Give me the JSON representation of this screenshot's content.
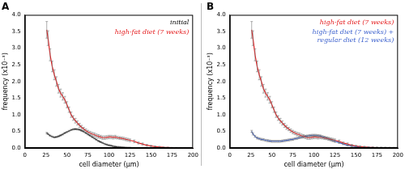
{
  "chart_data": [
    {
      "type": "line",
      "title": "A",
      "xlabel": "cell diameter (μm)",
      "ylabel": "frequency (x10⁻³)",
      "x": [
        26,
        27.5,
        30,
        32.5,
        35,
        37.5,
        40,
        42.5,
        45,
        47.5,
        50,
        52.5,
        55,
        57.5,
        60,
        62.5,
        65,
        67.5,
        70,
        72.5,
        75,
        77.5,
        80,
        82.5,
        85,
        87.5,
        90,
        92.5,
        95,
        97.5,
        100,
        102.5,
        105,
        107.5,
        110,
        112.5,
        115,
        117.5,
        120,
        122.5,
        125,
        130,
        135,
        140,
        145,
        150,
        155,
        160,
        165,
        170,
        175,
        180,
        185,
        190,
        195,
        200
      ],
      "xlim": [
        0,
        200
      ],
      "xticks": [
        0,
        25,
        50,
        75,
        100,
        125,
        150,
        175,
        200
      ],
      "ylim": [
        0,
        4
      ],
      "yticks": [
        {
          "value": 0,
          "label": "0.0"
        },
        {
          "value": 0.5,
          "label": "0.5"
        },
        {
          "value": 1,
          "label": "1.0"
        },
        {
          "value": 1.5,
          "label": "1.5"
        },
        {
          "value": 2,
          "label": "2.0"
        },
        {
          "value": 2.5,
          "label": "2.5"
        },
        {
          "value": 3,
          "label": "3.0"
        },
        {
          "value": 3.5,
          "label": "3.5"
        },
        {
          "value": 4,
          "label": "4.0"
        }
      ],
      "grid": false,
      "legend": "upper right",
      "series": [
        {
          "name": "initial",
          "color": "#000000",
          "values": [
            0.45,
            0.42,
            0.37,
            0.34,
            0.32,
            0.33,
            0.35,
            0.38,
            0.41,
            0.45,
            0.48,
            0.51,
            0.54,
            0.56,
            0.57,
            0.56,
            0.55,
            0.52,
            0.49,
            0.45,
            0.41,
            0.37,
            0.33,
            0.29,
            0.25,
            0.21,
            0.18,
            0.15,
            0.12,
            0.1,
            0.08,
            0.07,
            0.05,
            0.04,
            0.03,
            0.025,
            0.02,
            0.015,
            0.01,
            0.008,
            0.006,
            0.004,
            0.003,
            0.002,
            0.001,
            0.001,
            null,
            null,
            null,
            null,
            null,
            null,
            null,
            null,
            null,
            null
          ],
          "errors": [
            0.02,
            0.02,
            0.02,
            0.02,
            0.02,
            0.02,
            0.02,
            0.02,
            0.02,
            0.02,
            0.02,
            0.02,
            0.02,
            0.02,
            0.02,
            0.02,
            0.02,
            0.02,
            0.02,
            0.02,
            0.02,
            0.02,
            0.02,
            0.02,
            0.02,
            0.02,
            0.02,
            0.02,
            0.02,
            0.02,
            0.02,
            0.02,
            0.02,
            0.02,
            0.02,
            0.02,
            0.02,
            0.02,
            0.02,
            0.02,
            0.02,
            0.01,
            0.01,
            0.01,
            0.01,
            0.01,
            null,
            null,
            null,
            null,
            null,
            null,
            null,
            null,
            null,
            null
          ]
        },
        {
          "name": "high-fat diet (7 weeks)",
          "color": "#e41a1c",
          "values": [
            3.55,
            3.3,
            2.8,
            2.45,
            2.2,
            2.0,
            1.78,
            1.65,
            1.55,
            1.45,
            1.3,
            1.15,
            1.0,
            0.9,
            0.82,
            0.75,
            0.68,
            0.62,
            0.57,
            0.52,
            0.48,
            0.45,
            0.42,
            0.4,
            0.37,
            0.35,
            0.33,
            0.31,
            0.31,
            0.32,
            0.33,
            0.33,
            0.32,
            0.33,
            0.31,
            0.3,
            0.29,
            0.28,
            0.26,
            0.25,
            0.23,
            0.2,
            0.15,
            0.12,
            0.08,
            0.06,
            0.04,
            0.03,
            0.02,
            0.015,
            0.01,
            0.008,
            0.006,
            0.004,
            0.003,
            0.002
          ],
          "errors": [
            0.25,
            0.22,
            0.18,
            0.16,
            0.15,
            0.14,
            0.13,
            0.12,
            0.11,
            0.1,
            0.09,
            0.08,
            0.08,
            0.07,
            0.07,
            0.06,
            0.06,
            0.06,
            0.05,
            0.05,
            0.05,
            0.05,
            0.05,
            0.05,
            0.05,
            0.05,
            0.05,
            0.05,
            0.05,
            0.05,
            0.05,
            0.05,
            0.05,
            0.05,
            0.04,
            0.04,
            0.04,
            0.04,
            0.04,
            0.04,
            0.04,
            0.04,
            0.03,
            0.03,
            0.03,
            0.02,
            0.02,
            0.02,
            0.01,
            0.01,
            0.01,
            0.01,
            0.01,
            0.01,
            0.01,
            0.01
          ]
        }
      ]
    },
    {
      "type": "line",
      "title": "B",
      "xlabel": "cell diameter (μm)",
      "ylabel": "frequency (x10⁻³)",
      "x": [
        26,
        27.5,
        30,
        32.5,
        35,
        37.5,
        40,
        42.5,
        45,
        47.5,
        50,
        52.5,
        55,
        57.5,
        60,
        62.5,
        65,
        67.5,
        70,
        72.5,
        75,
        77.5,
        80,
        82.5,
        85,
        87.5,
        90,
        92.5,
        95,
        97.5,
        100,
        102.5,
        105,
        107.5,
        110,
        112.5,
        115,
        117.5,
        120,
        122.5,
        125,
        130,
        135,
        140,
        145,
        150,
        155,
        160,
        165,
        170,
        175,
        180,
        185,
        190,
        195,
        200
      ],
      "xlim": [
        0,
        200
      ],
      "xticks": [
        0,
        25,
        50,
        75,
        100,
        125,
        150,
        175,
        200
      ],
      "ylim": [
        0,
        4
      ],
      "yticks": [
        {
          "value": 0,
          "label": "0.0"
        },
        {
          "value": 0.5,
          "label": "0.5"
        },
        {
          "value": 1,
          "label": "1.0"
        },
        {
          "value": 1.5,
          "label": "1.5"
        },
        {
          "value": 2,
          "label": "2.0"
        },
        {
          "value": 2.5,
          "label": "2.5"
        },
        {
          "value": 3,
          "label": "3.0"
        },
        {
          "value": 3.5,
          "label": "3.5"
        },
        {
          "value": 4,
          "label": "4.0"
        }
      ],
      "grid": false,
      "legend": "upper right",
      "series": [
        {
          "name": "high-fat diet (7 weeks)",
          "color": "#e41a1c",
          "values": [
            3.55,
            3.3,
            2.8,
            2.45,
            2.2,
            2.0,
            1.78,
            1.65,
            1.55,
            1.45,
            1.3,
            1.15,
            1.0,
            0.9,
            0.82,
            0.75,
            0.68,
            0.62,
            0.57,
            0.52,
            0.48,
            0.45,
            0.42,
            0.4,
            0.37,
            0.35,
            0.33,
            0.31,
            0.31,
            0.32,
            0.33,
            0.33,
            0.32,
            0.33,
            0.31,
            0.3,
            0.29,
            0.28,
            0.26,
            0.25,
            0.23,
            0.2,
            0.15,
            0.12,
            0.08,
            0.06,
            0.04,
            0.03,
            0.02,
            0.015,
            0.01,
            0.008,
            0.006,
            0.004,
            0.003,
            0.002
          ],
          "errors": [
            0.25,
            0.22,
            0.18,
            0.16,
            0.15,
            0.14,
            0.13,
            0.12,
            0.11,
            0.1,
            0.09,
            0.08,
            0.08,
            0.07,
            0.07,
            0.06,
            0.06,
            0.06,
            0.05,
            0.05,
            0.05,
            0.05,
            0.05,
            0.05,
            0.05,
            0.05,
            0.05,
            0.05,
            0.05,
            0.05,
            0.05,
            0.05,
            0.05,
            0.05,
            0.04,
            0.04,
            0.04,
            0.04,
            0.04,
            0.04,
            0.04,
            0.04,
            0.03,
            0.03,
            0.03,
            0.02,
            0.02,
            0.02,
            0.01,
            0.01,
            0.01,
            0.01,
            0.01,
            0.01,
            0.01,
            0.01
          ]
        },
        {
          "name": "high-fat diet (7 weeks) + regular diet (12 weeks)",
          "color": "#3a5fcd",
          "values": [
            0.5,
            0.42,
            0.35,
            0.3,
            0.28,
            0.26,
            0.25,
            0.23,
            0.22,
            0.21,
            0.2,
            0.2,
            0.2,
            0.2,
            0.2,
            0.21,
            0.22,
            0.23,
            0.24,
            0.25,
            0.26,
            0.28,
            0.29,
            0.31,
            0.32,
            0.34,
            0.35,
            0.36,
            0.37,
            0.38,
            0.38,
            0.38,
            0.37,
            0.36,
            0.34,
            0.32,
            0.3,
            0.27,
            0.25,
            0.22,
            0.2,
            0.16,
            0.12,
            0.08,
            0.06,
            0.04,
            0.03,
            0.02,
            0.015,
            0.01,
            0.008,
            0.005,
            0.004,
            0.003,
            0.002,
            0.001
          ],
          "errors": [
            0.03,
            0.03,
            0.03,
            0.03,
            0.03,
            0.03,
            0.03,
            0.03,
            0.03,
            0.03,
            0.03,
            0.03,
            0.03,
            0.03,
            0.03,
            0.03,
            0.03,
            0.03,
            0.03,
            0.03,
            0.03,
            0.03,
            0.03,
            0.03,
            0.03,
            0.03,
            0.03,
            0.03,
            0.03,
            0.03,
            0.03,
            0.03,
            0.03,
            0.03,
            0.03,
            0.03,
            0.03,
            0.03,
            0.03,
            0.03,
            0.03,
            0.02,
            0.02,
            0.02,
            0.02,
            0.02,
            0.02,
            0.02,
            0.02,
            0.02,
            0.02,
            0.02,
            0.02,
            0.02,
            0.02,
            0.02
          ]
        }
      ]
    }
  ]
}
